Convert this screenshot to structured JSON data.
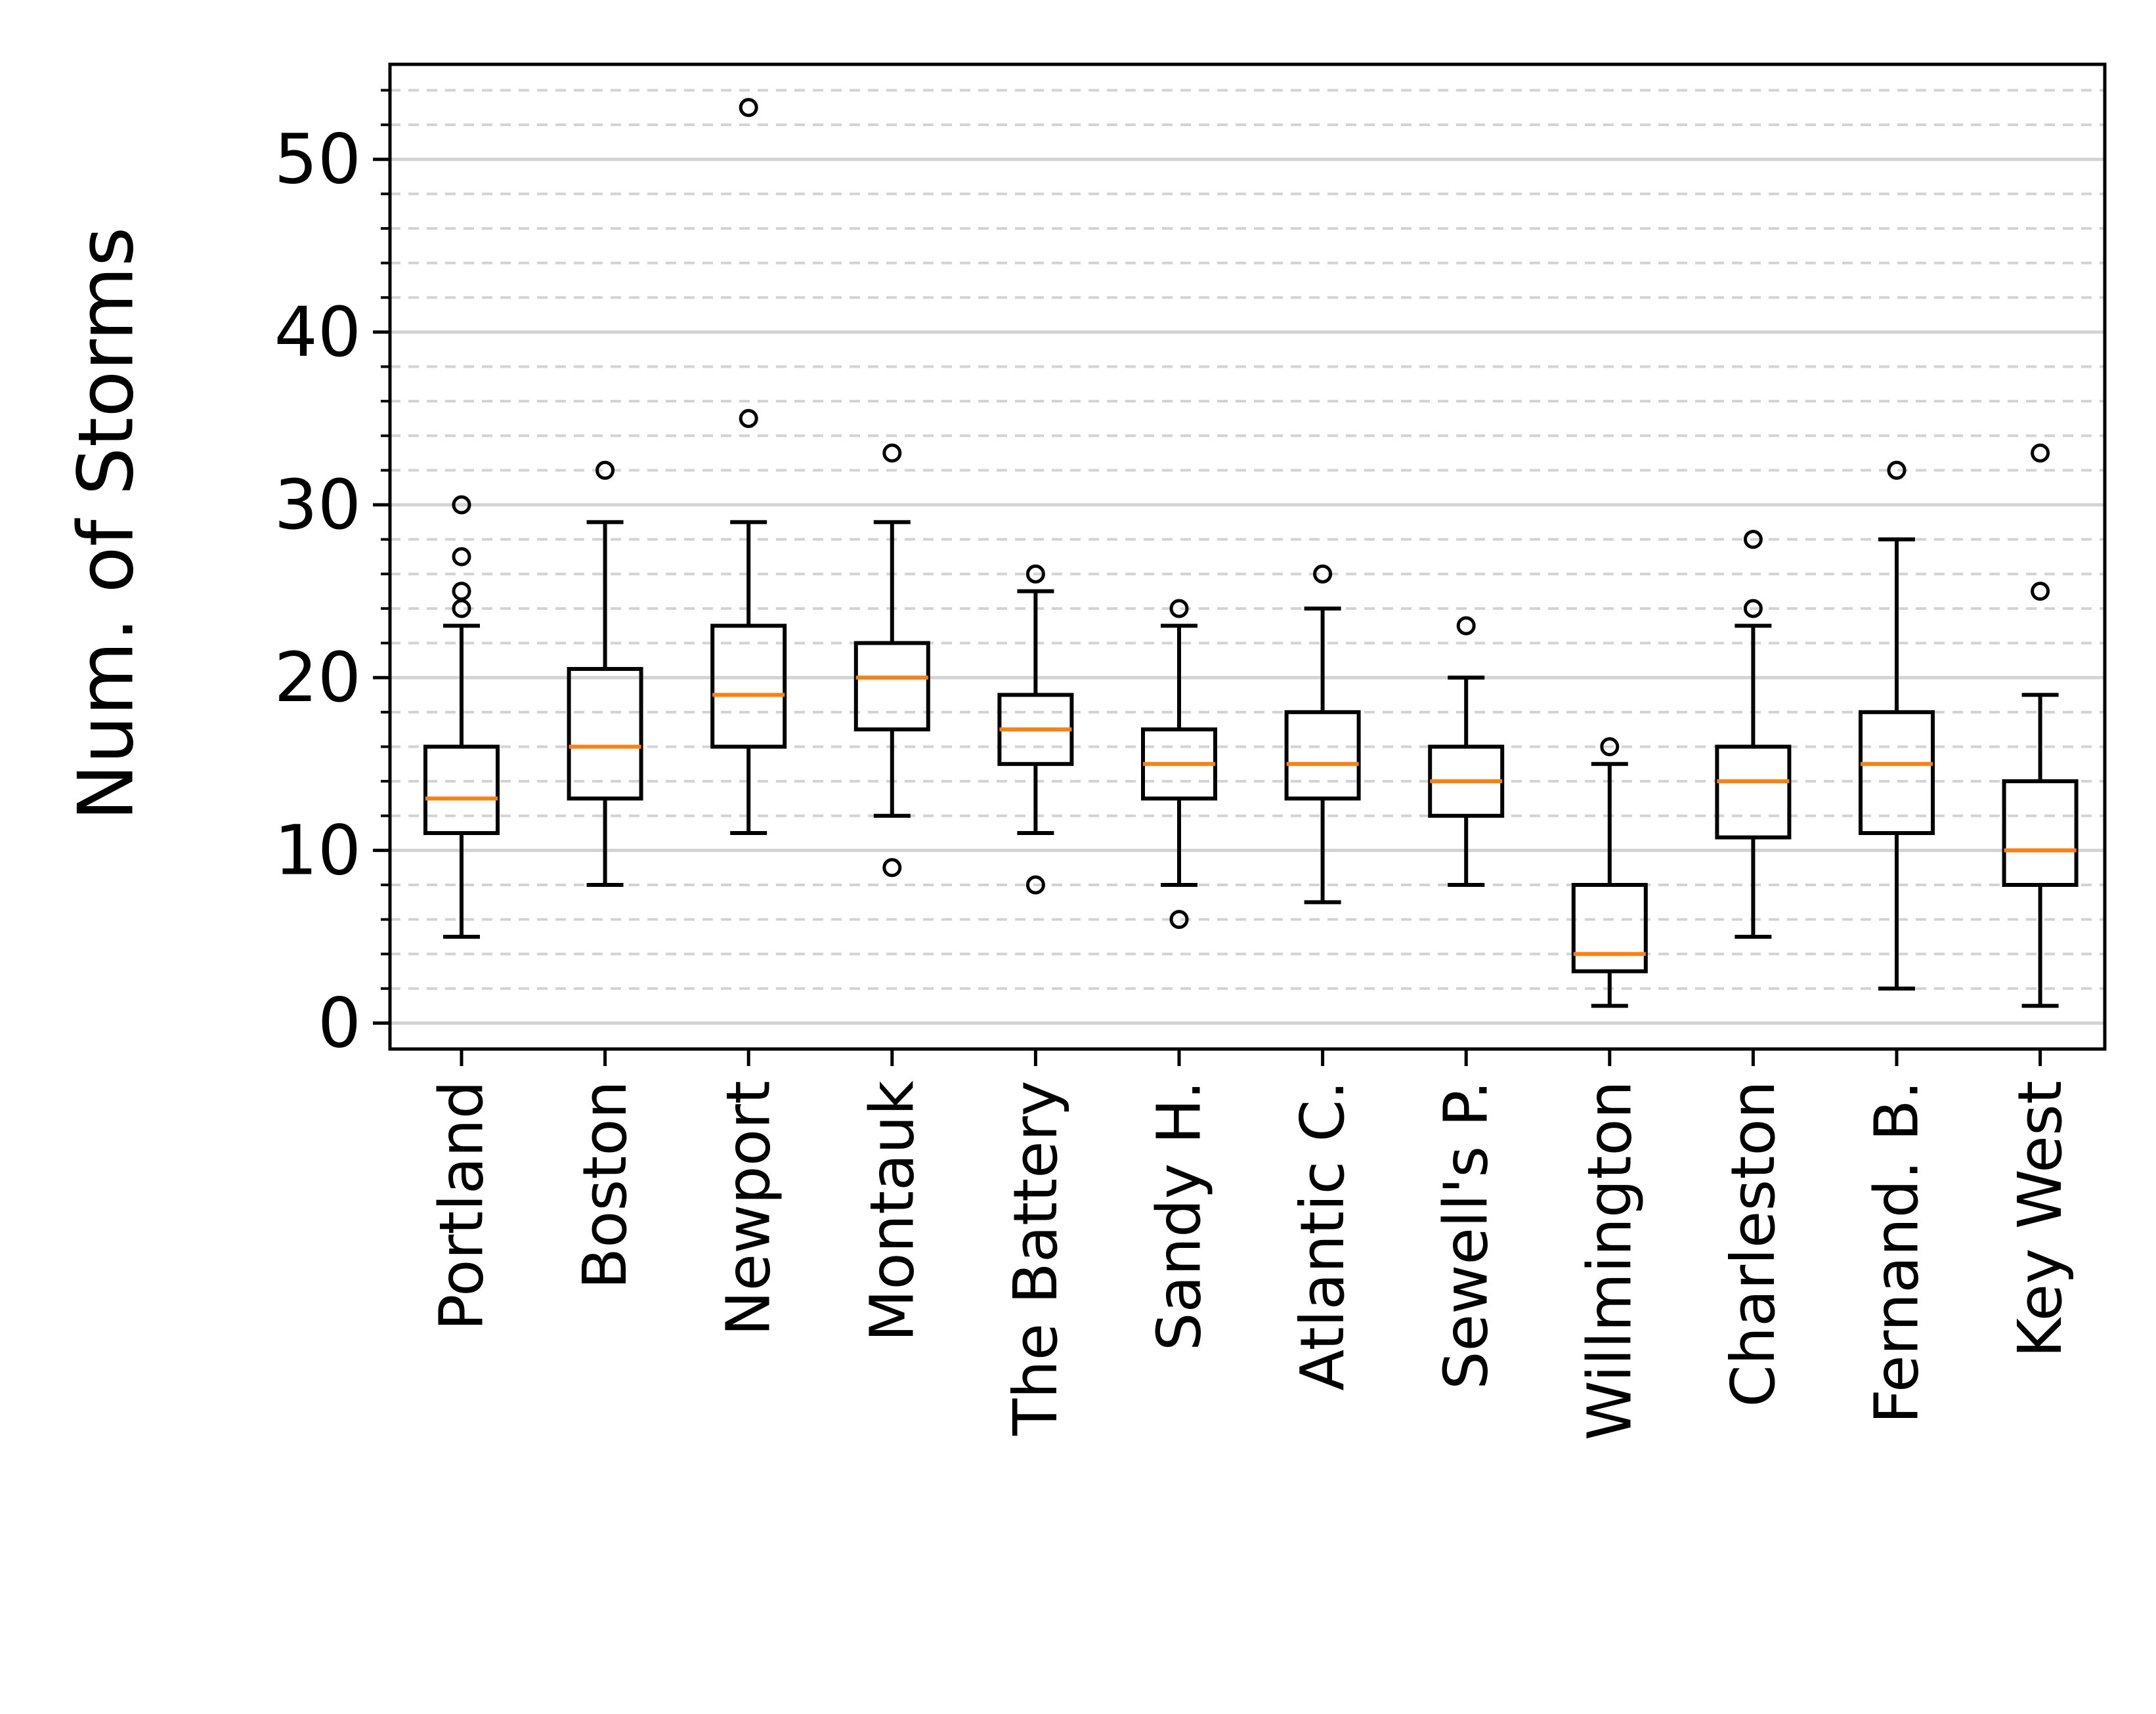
{
  "chart_data": {
    "type": "box",
    "ylabel": "Num. of Storms",
    "ylim": [
      -1.5,
      55.5
    ],
    "yticks": [
      0,
      10,
      20,
      30,
      40,
      50
    ],
    "grid": {
      "major": "solid",
      "minor": "dashed",
      "axis": "y",
      "minor_step": 2
    },
    "colors": {
      "box": "#000000",
      "median": "#ff7f0e",
      "grid": "#d3d3d3"
    },
    "categories": [
      "Portland",
      "Boston",
      "Newport",
      "Montauk",
      "The Battery",
      "Sandy H.",
      "Atlantic C.",
      "Sewell's P.",
      "Willmington",
      "Charleston",
      "Fernand. B.",
      "Key West"
    ],
    "boxes": [
      {
        "whisker_low": 5,
        "q1": 11,
        "median": 13,
        "q3": 16,
        "whisker_high": 23,
        "outliers": [
          24,
          25,
          27,
          30
        ]
      },
      {
        "whisker_low": 8,
        "q1": 13,
        "median": 16,
        "q3": 20.5,
        "whisker_high": 29,
        "outliers": [
          32
        ]
      },
      {
        "whisker_low": 11,
        "q1": 16,
        "median": 19,
        "q3": 23,
        "whisker_high": 29,
        "outliers": [
          35,
          53
        ]
      },
      {
        "whisker_low": 12,
        "q1": 17,
        "median": 20,
        "q3": 22,
        "whisker_high": 29,
        "outliers": [
          9,
          33
        ]
      },
      {
        "whisker_low": 11,
        "q1": 15,
        "median": 17,
        "q3": 19,
        "whisker_high": 25,
        "outliers": [
          8,
          26
        ]
      },
      {
        "whisker_low": 8,
        "q1": 13,
        "median": 15,
        "q3": 17,
        "whisker_high": 23,
        "outliers": [
          6,
          24
        ]
      },
      {
        "whisker_low": 7,
        "q1": 13,
        "median": 15,
        "q3": 18,
        "whisker_high": 24,
        "outliers": [
          26
        ]
      },
      {
        "whisker_low": 8,
        "q1": 12,
        "median": 14,
        "q3": 16,
        "whisker_high": 20,
        "outliers": [
          23
        ]
      },
      {
        "whisker_low": 1,
        "q1": 3,
        "median": 4,
        "q3": 8,
        "whisker_high": 15,
        "outliers": [
          16
        ]
      },
      {
        "whisker_low": 5,
        "q1": 10.75,
        "median": 14,
        "q3": 16,
        "whisker_high": 23,
        "outliers": [
          24,
          28
        ]
      },
      {
        "whisker_low": 2,
        "q1": 11,
        "median": 15,
        "q3": 18,
        "whisker_high": 28,
        "outliers": [
          32
        ]
      },
      {
        "whisker_low": 1,
        "q1": 8,
        "median": 10,
        "q3": 14,
        "whisker_high": 19,
        "outliers": [
          25,
          33
        ]
      }
    ]
  }
}
